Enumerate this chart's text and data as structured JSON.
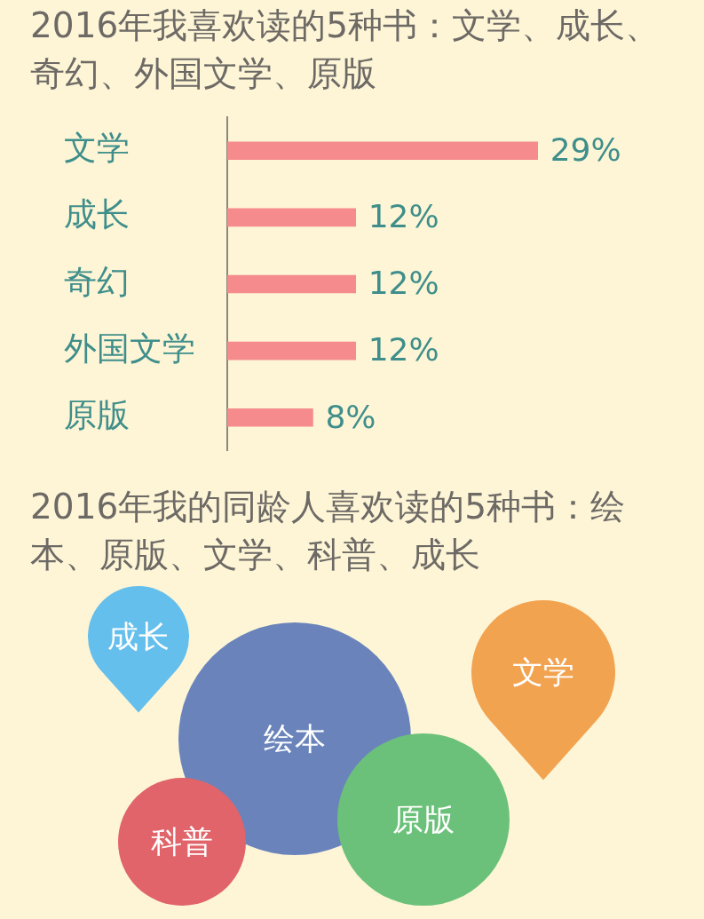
{
  "chart_data": [
    {
      "type": "bar",
      "orientation": "horizontal",
      "title": "2016年我喜欢读的5种书：文学、成长、奇幻、外国文学、原版",
      "categories": [
        "文学",
        "成长",
        "奇幻",
        "外国文学",
        "原版"
      ],
      "values": [
        29,
        12,
        12,
        12,
        8
      ],
      "color": "#f58b8d",
      "value_labels": [
        "29%",
        "12%",
        "12%",
        "12%",
        "8%"
      ],
      "tick_labels": "y"
    },
    {
      "type": "other",
      "title": "2016年我的同龄人喜欢读的5种书：绘本、原版、文学、科普、成长",
      "categories": [
        "成长",
        "绘本",
        "文学",
        "原版",
        "科普"
      ],
      "colors": [
        "#64bfec",
        "#6a84bb",
        "#f2a350",
        "#6cc17a",
        "#e0646a"
      ]
    }
  ]
}
